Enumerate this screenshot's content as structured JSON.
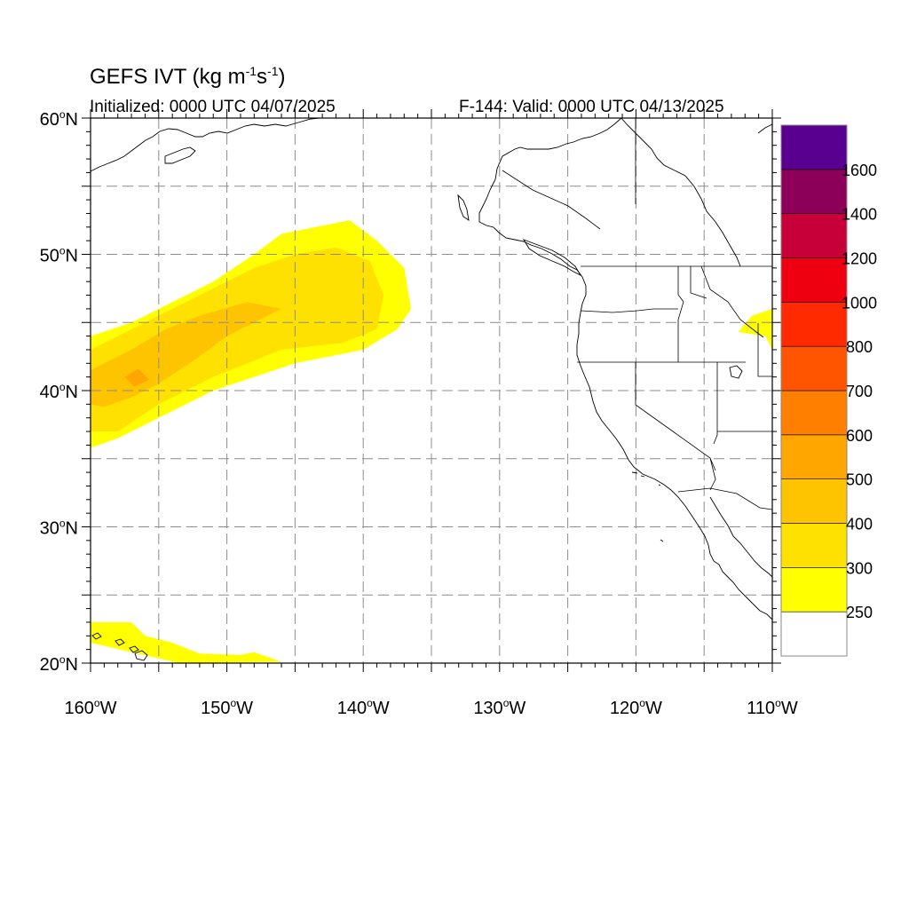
{
  "title": {
    "main": "GEFS IVT (kg m",
    "exp1": "-1",
    "mid": "s",
    "exp2": "-1",
    "end": ")"
  },
  "initialized": "Initialized: 0000 UTC 04/07/2025",
  "valid": "F-144: Valid: 0000 UTC 04/13/2025",
  "map": {
    "lon_range": [
      -160,
      -110
    ],
    "lat_range": [
      20,
      60
    ],
    "lat_ticks": [
      {
        "value": 60,
        "label": "60",
        "suffix": "N"
      },
      {
        "value": 50,
        "label": "50",
        "suffix": "N"
      },
      {
        "value": 40,
        "label": "40",
        "suffix": "N"
      },
      {
        "value": 30,
        "label": "30",
        "suffix": "N"
      },
      {
        "value": 20,
        "label": "20",
        "suffix": "N"
      }
    ],
    "lon_ticks": [
      {
        "value": -160,
        "label": "160",
        "suffix": "W"
      },
      {
        "value": -150,
        "label": "150",
        "suffix": "W"
      },
      {
        "value": -140,
        "label": "140",
        "suffix": "W"
      },
      {
        "value": -130,
        "label": "130",
        "suffix": "W"
      },
      {
        "value": -120,
        "label": "120",
        "suffix": "W"
      },
      {
        "value": -110,
        "label": "110",
        "suffix": "W"
      }
    ],
    "grid_lons": [
      -155,
      -150,
      -145,
      -140,
      -135,
      -130,
      -125,
      -120,
      -115
    ],
    "grid_lats": [
      25,
      30,
      35,
      40,
      45,
      50,
      55
    ]
  },
  "colorbar": {
    "levels": [
      "250",
      "300",
      "400",
      "500",
      "600",
      "700",
      "800",
      "1000",
      "1200",
      "1400",
      "1600"
    ],
    "colors": [
      "#ffffff",
      "#ffff00",
      "#ffe100",
      "#ffc400",
      "#ffa600",
      "#ff8000",
      "#ff5500",
      "#ff2a00",
      "#ee0010",
      "#c8003a",
      "#8c005a",
      "#5a0090"
    ]
  },
  "chart_data": {
    "type": "heatmap",
    "variable": "IVT",
    "units": "kg m-1 s-1",
    "xlim": [
      -160,
      -110
    ],
    "ylim": [
      20,
      60
    ],
    "regions": [
      {
        "value_range": [
          250,
          300
        ],
        "polygon": [
          [
            -160,
            44
          ],
          [
            -157,
            45
          ],
          [
            -154,
            46.5
          ],
          [
            -151,
            48
          ],
          [
            -148,
            50
          ],
          [
            -146,
            51.5
          ],
          [
            -141,
            52.5
          ],
          [
            -139,
            51
          ],
          [
            -137,
            49
          ],
          [
            -136.5,
            46
          ],
          [
            -137.5,
            44.5
          ],
          [
            -140,
            43
          ],
          [
            -145,
            42
          ],
          [
            -151,
            40
          ],
          [
            -155,
            38
          ],
          [
            -158,
            36.5
          ],
          [
            -160,
            35.8
          ]
        ]
      },
      {
        "value_range": [
          300,
          400
        ],
        "polygon": [
          [
            -160,
            43
          ],
          [
            -157,
            44.5
          ],
          [
            -154,
            46
          ],
          [
            -151,
            47.5
          ],
          [
            -148,
            49
          ],
          [
            -145,
            50
          ],
          [
            -142,
            50.5
          ],
          [
            -139.5,
            49.5
          ],
          [
            -138.5,
            47
          ],
          [
            -139,
            44.5
          ],
          [
            -141.5,
            43.5
          ],
          [
            -146,
            43
          ],
          [
            -151,
            41
          ],
          [
            -155,
            39
          ],
          [
            -158,
            37
          ],
          [
            -160,
            37
          ]
        ]
      },
      {
        "value_range": [
          400,
          500
        ],
        "polygon": [
          [
            -160,
            41.5
          ],
          [
            -157,
            43
          ],
          [
            -154.5,
            44.5
          ],
          [
            -152,
            45.5
          ],
          [
            -148.5,
            46.5
          ],
          [
            -146,
            46
          ],
          [
            -148,
            45
          ],
          [
            -150,
            44
          ],
          [
            -152,
            42.5
          ],
          [
            -155,
            40.5
          ],
          [
            -157,
            39.5
          ],
          [
            -159,
            38.8
          ],
          [
            -160,
            39
          ]
        ]
      },
      {
        "value_range": [
          500,
          600
        ],
        "polygon": [
          [
            -157.5,
            41
          ],
          [
            -156.5,
            41.6
          ],
          [
            -155.7,
            40.8
          ],
          [
            -156.8,
            40.3
          ]
        ]
      },
      {
        "value_range": [
          250,
          300
        ],
        "polygon": [
          [
            -160,
            23
          ],
          [
            -157,
            23
          ],
          [
            -156,
            22
          ],
          [
            -154,
            21.5
          ],
          [
            -152,
            20.7
          ],
          [
            -149,
            20.6
          ],
          [
            -148,
            20.8
          ],
          [
            -146,
            20.1
          ],
          [
            -153.5,
            20
          ],
          [
            -160,
            21.5
          ]
        ]
      },
      {
        "value_range": [
          250,
          300
        ],
        "polygon": [
          [
            -111.5,
            45.5
          ],
          [
            -110,
            46
          ],
          [
            -110,
            43
          ],
          [
            -110.5,
            44
          ],
          [
            -112.5,
            44.3
          ]
        ]
      }
    ]
  }
}
